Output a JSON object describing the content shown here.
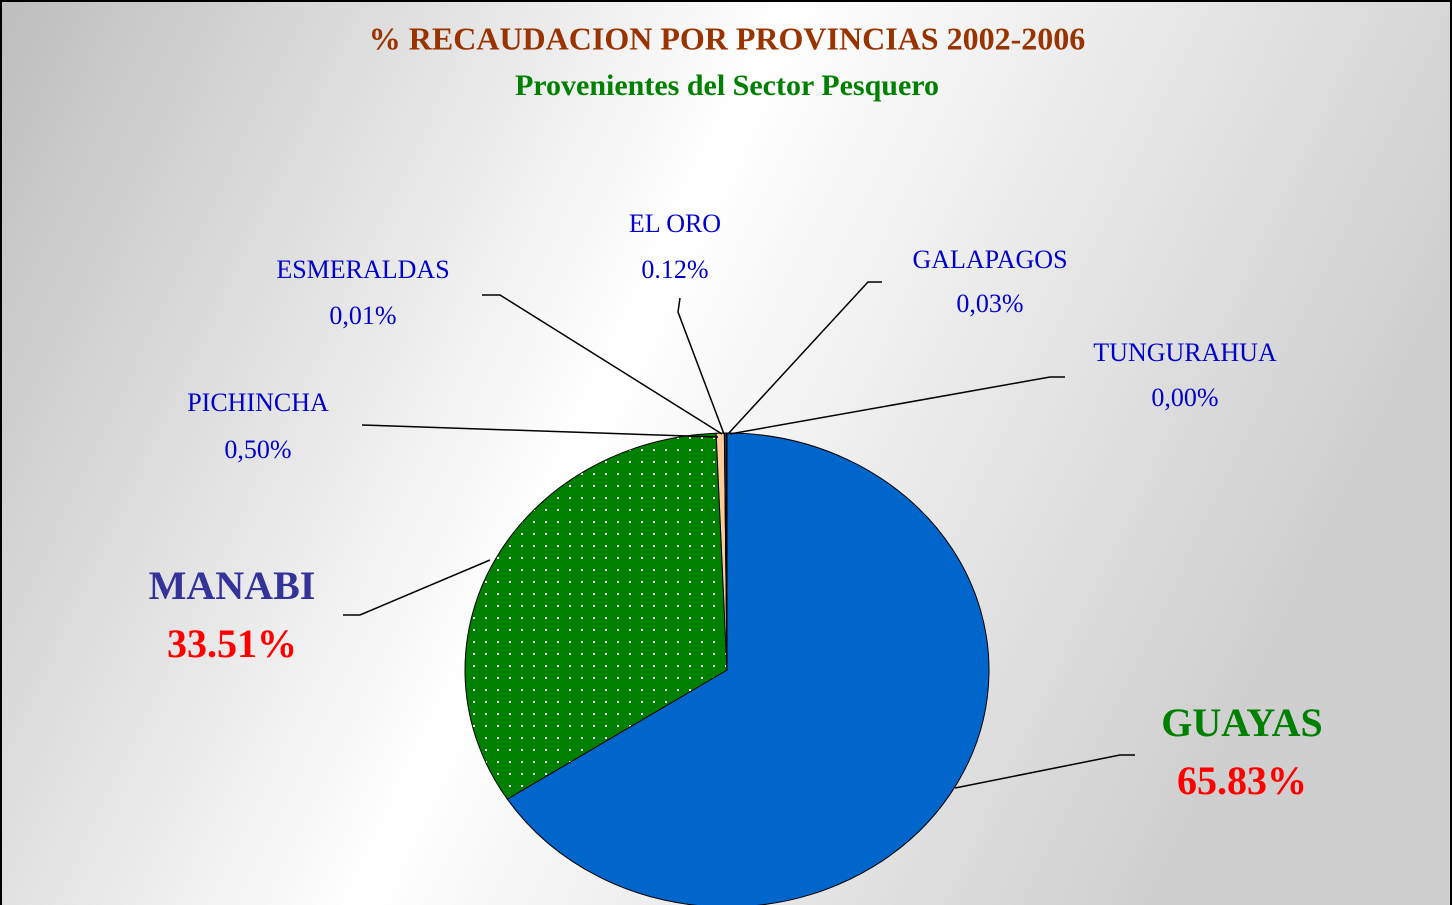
{
  "chart_data": {
    "type": "pie",
    "title": "% RECAUDACION POR PROVINCIAS 2002-2006",
    "subtitle": "Provenientes del Sector Pesquero",
    "categories": [
      "GUAYAS",
      "MANABI",
      "PICHINCHA",
      "ESMERALDAS",
      "EL ORO",
      "GALAPAGOS",
      "TUNGURAHUA"
    ],
    "values": [
      65.83,
      33.51,
      0.5,
      0.01,
      0.12,
      0.03,
      0.0
    ],
    "value_labels": [
      "65.83%",
      "33.51%",
      "0,50%",
      "0,01%",
      "0.12%",
      "0,03%",
      "0,00%"
    ],
    "colors": [
      "#0066cc",
      "#008000",
      "#ffcc99",
      "#000080",
      "#333366",
      "#000000",
      "#663300"
    ]
  }
}
